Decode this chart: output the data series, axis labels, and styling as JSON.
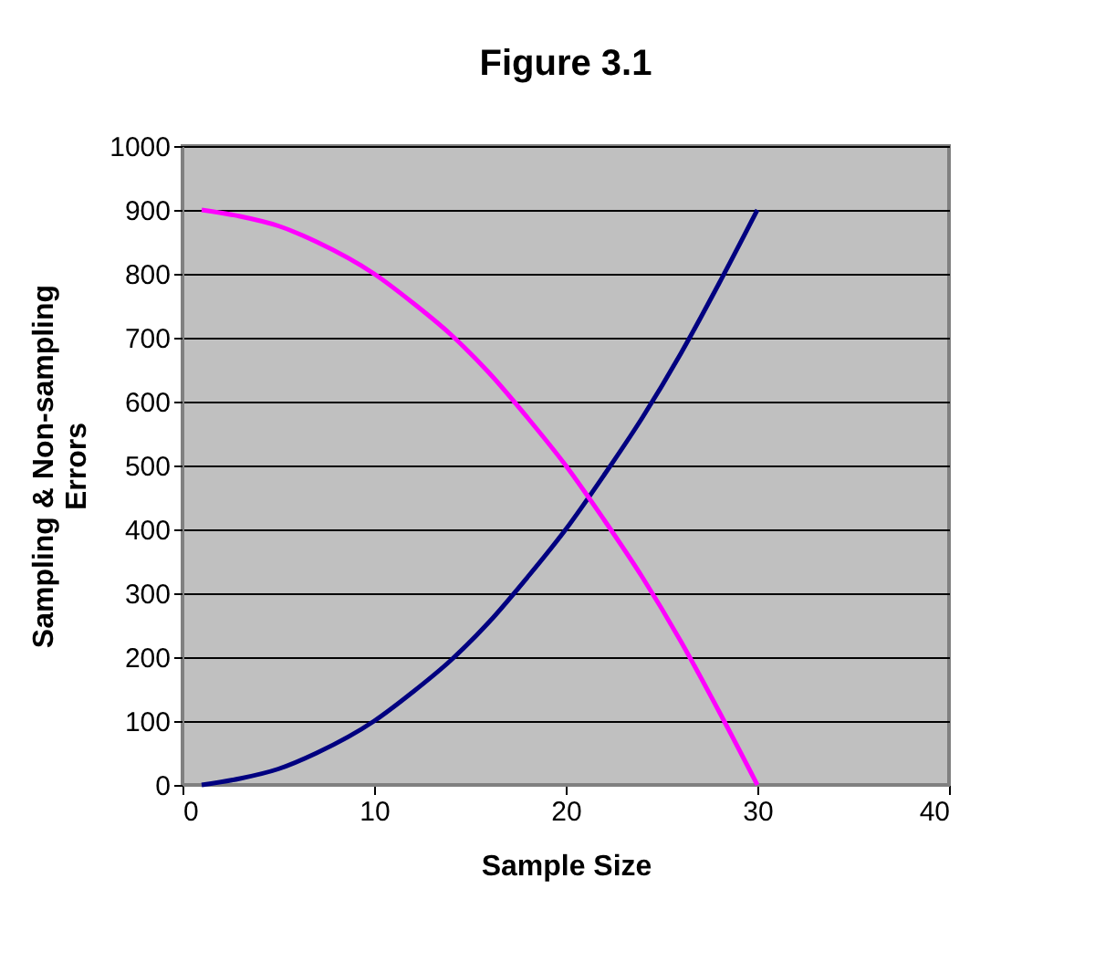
{
  "chart_data": {
    "type": "line",
    "title": "Figure 3.1",
    "xlabel": "Sample Size",
    "ylabel": "Sampling & Non-sampling Errors",
    "x": [
      1,
      3,
      5,
      7,
      10,
      12,
      14,
      16,
      18,
      20,
      22,
      24,
      26,
      28,
      30
    ],
    "series": [
      {
        "color": "#000080",
        "values": [
          0,
          10,
          25,
          50,
          100,
          145,
          195,
          255,
          325,
          400,
          485,
          575,
          675,
          785,
          900
        ]
      },
      {
        "color": "#ff00ff",
        "values": [
          900,
          890,
          875,
          850,
          800,
          755,
          705,
          645,
          575,
          500,
          415,
          325,
          225,
          115,
          0
        ]
      }
    ],
    "xlim": [
      0,
      40
    ],
    "xticks": [
      0,
      10,
      20,
      30,
      40
    ],
    "ylim": [
      0,
      1000
    ],
    "yticks": [
      0,
      100,
      200,
      300,
      400,
      500,
      600,
      700,
      800,
      900,
      1000
    ],
    "grid": "y",
    "legend": false,
    "marker": "none",
    "line_style": "solid"
  }
}
